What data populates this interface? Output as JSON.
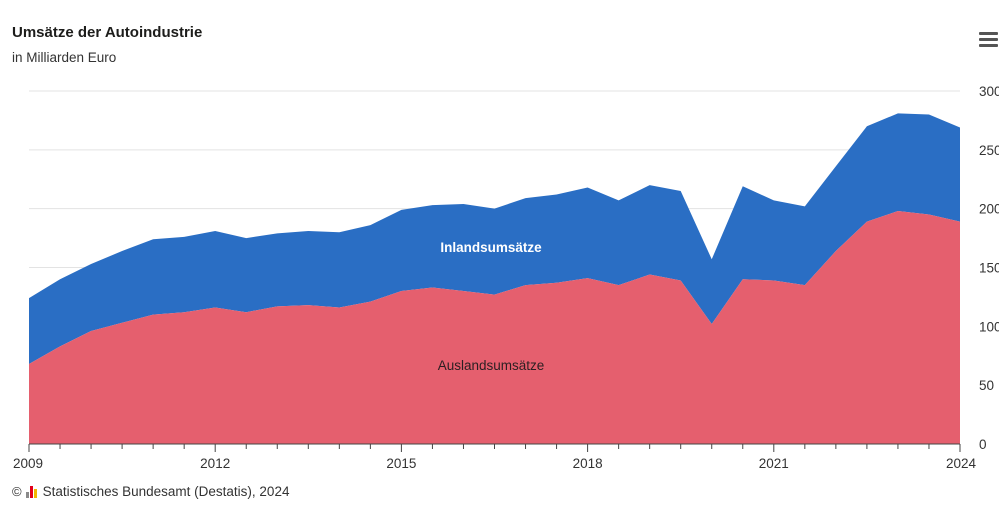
{
  "header": {
    "title": "Umsätze der Autoindustrie",
    "subtitle": "in Milliarden Euro"
  },
  "footer": {
    "copyright_symbol": "©",
    "source": "Statistisches Bundesamt (Destatis), 2024"
  },
  "menu": {
    "icon": "hamburger-menu-icon"
  },
  "colors": {
    "ausland": "#e55f6e",
    "inland": "#2a6ec4",
    "grid": "#e3e3e3",
    "axis": "#444444"
  },
  "chart_data": {
    "type": "area",
    "stacked": true,
    "title": "Umsätze der Autoindustrie",
    "subtitle": "in Milliarden Euro",
    "xlabel": "",
    "ylabel": "",
    "ylim": [
      0,
      300
    ],
    "yticks": [
      0,
      50,
      100,
      150,
      200,
      250,
      300
    ],
    "y_axis_side": "right",
    "xlim": [
      2009,
      2024
    ],
    "xticks": [
      2009,
      2012,
      2015,
      2018,
      2021,
      2024
    ],
    "x": [
      2009,
      2009.5,
      2010,
      2010.5,
      2011,
      2011.5,
      2012,
      2012.5,
      2013,
      2013.5,
      2014,
      2014.5,
      2015,
      2015.5,
      2016,
      2016.5,
      2017,
      2017.5,
      2018,
      2018.5,
      2019,
      2019.5,
      2020,
      2020.5,
      2021,
      2021.5,
      2022,
      2022.5,
      2023,
      2023.5,
      2024
    ],
    "series": [
      {
        "name": "Auslandsumsätze",
        "values": [
          68,
          83,
          96,
          103,
          110,
          112,
          116,
          112,
          117,
          118,
          116,
          121,
          130,
          133,
          130,
          127,
          135,
          137,
          141,
          135,
          144,
          139,
          102,
          140,
          139,
          135,
          164,
          189,
          198,
          195,
          189
        ]
      },
      {
        "name": "Inlandsumsätze",
        "values": [
          56,
          57,
          57,
          61,
          64,
          64,
          65,
          63,
          62,
          63,
          64,
          65,
          69,
          70,
          74,
          73,
          74,
          75,
          77,
          72,
          76,
          76,
          55,
          79,
          68,
          67,
          72,
          81,
          83,
          85,
          80
        ]
      }
    ],
    "series_labels": [
      "Auslandsumsätze",
      "Inlandsumsätze"
    ]
  }
}
